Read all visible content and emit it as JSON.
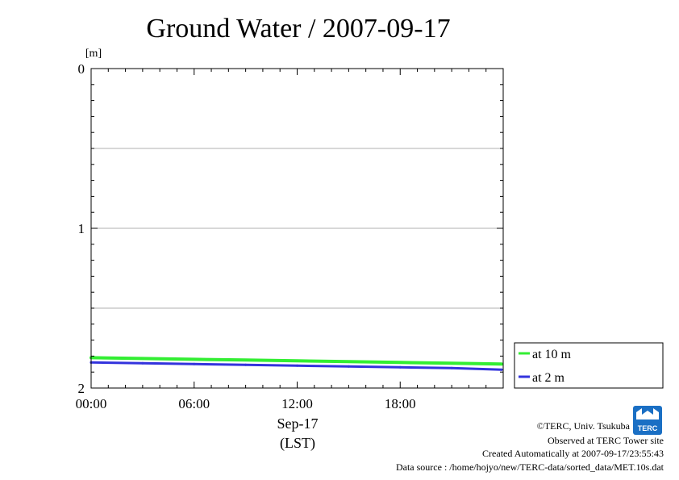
{
  "chart_data": {
    "type": "line",
    "title": "Ground Water / 2007-09-17",
    "ylabel": "[m]",
    "y_inverted": true,
    "ylim": [
      0,
      2
    ],
    "y_ticks": [
      "0",
      "1",
      "2"
    ],
    "y_grid": [
      0.5,
      1.0,
      1.5
    ],
    "xlim": [
      0,
      24
    ],
    "x_ticks": [
      {
        "hour": 0,
        "label": "00:00"
      },
      {
        "hour": 6,
        "label": "06:00"
      },
      {
        "hour": 12,
        "label": "12:00"
      },
      {
        "hour": 18,
        "label": "18:00"
      }
    ],
    "x_date_label": "Sep-17",
    "x_zone_label": "(LST)",
    "grid": true,
    "legend_position": "right",
    "series": [
      {
        "name": "at 10 m",
        "color": "#33ee33",
        "x": [
          0,
          3,
          6,
          9,
          12,
          15,
          18,
          21,
          23.9
        ],
        "y": [
          1.81,
          1.815,
          1.82,
          1.825,
          1.83,
          1.835,
          1.84,
          1.845,
          1.85
        ]
      },
      {
        "name": "at 2 m",
        "color": "#3333dd",
        "x": [
          0,
          3,
          6,
          9,
          12,
          15,
          18,
          21,
          23.9
        ],
        "y": [
          1.84,
          1.845,
          1.85,
          1.855,
          1.86,
          1.865,
          1.87,
          1.875,
          1.885
        ]
      }
    ]
  },
  "footer": {
    "copyright": "©TERC, Univ. Tsukuba",
    "observed": "Observed at TERC Tower site",
    "created": "Created Automatically at 2007-09-17/23:55:43",
    "source": "Data source : /home/hojyo/new/TERC-data/sorted_data/MET.10s.dat"
  },
  "logo": {
    "text": "TERC",
    "color": "#1a6fc4"
  }
}
